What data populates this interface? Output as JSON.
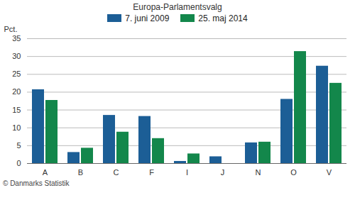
{
  "chart_data": {
    "type": "bar",
    "title": "Europa-Parlamentsvalg",
    "y_label": "Pct.",
    "caption": "© Danmarks Statistik",
    "categories": [
      "A",
      "B",
      "C",
      "F",
      "I",
      "J",
      "N",
      "O",
      "V"
    ],
    "series": [
      {
        "name": "7. juni 2009",
        "color": "#1c5e96",
        "values": [
          20.7,
          3.1,
          13.5,
          13.2,
          0.6,
          1.9,
          5.8,
          18.0,
          27.3
        ]
      },
      {
        "name": "25. maj 2014",
        "color": "#13874b",
        "values": [
          17.7,
          4.3,
          8.8,
          7.0,
          2.7,
          null,
          6.0,
          31.4,
          22.5
        ]
      }
    ],
    "ylim": [
      0,
      35
    ],
    "yticks": [
      0,
      5,
      10,
      15,
      20,
      25,
      30,
      35
    ],
    "grid": true,
    "legend": "top"
  }
}
